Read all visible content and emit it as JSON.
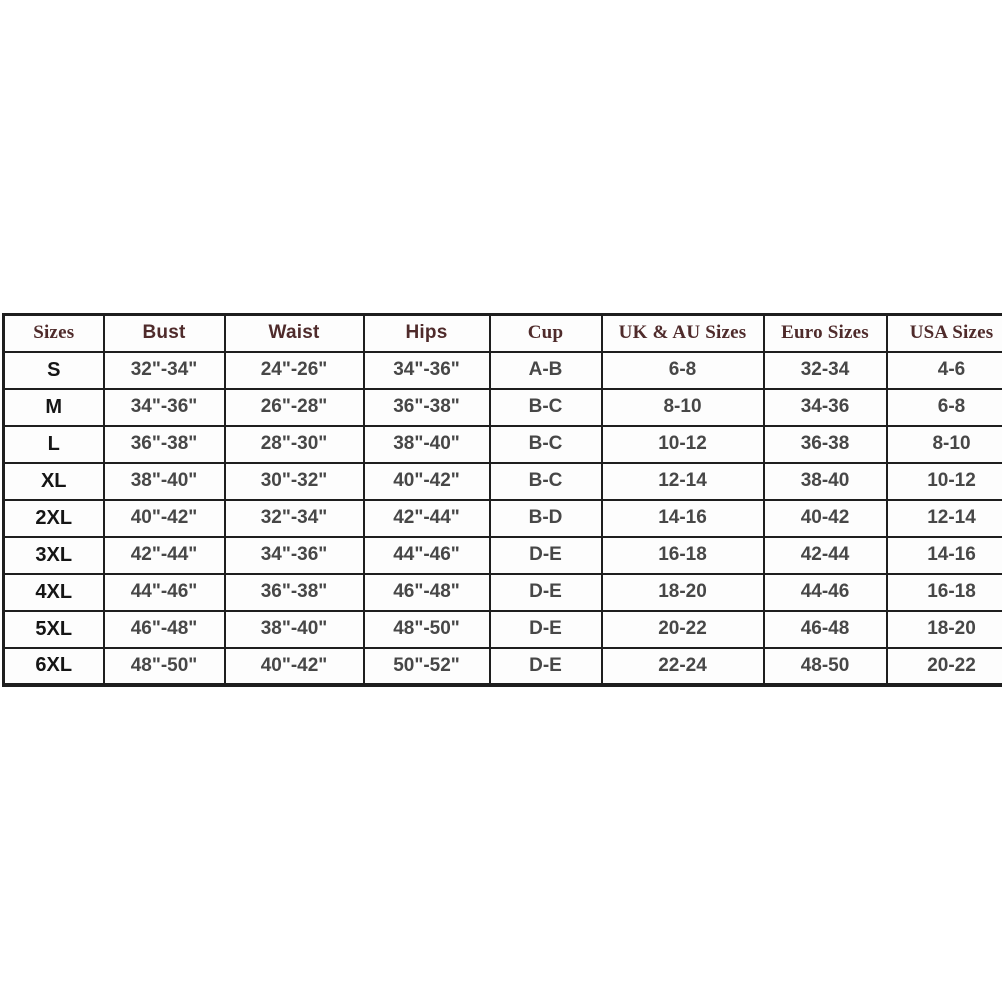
{
  "chart_data": {
    "type": "table",
    "columns": [
      "Sizes",
      "Bust",
      "Waist",
      "Hips",
      "Cup",
      "UK & AU Sizes",
      "Euro Sizes",
      "USA Sizes"
    ],
    "rows": [
      [
        "S",
        "32\"-34\"",
        "24\"-26\"",
        "34\"-36\"",
        "A-B",
        "6-8",
        "32-34",
        "4-6"
      ],
      [
        "M",
        "34\"-36\"",
        "26\"-28\"",
        "36\"-38\"",
        "B-C",
        "8-10",
        "34-36",
        "6-8"
      ],
      [
        "L",
        "36\"-38\"",
        "28\"-30\"",
        "38\"-40\"",
        "B-C",
        "10-12",
        "36-38",
        "8-10"
      ],
      [
        "XL",
        "38\"-40\"",
        "30\"-32\"",
        "40\"-42\"",
        "B-C",
        "12-14",
        "38-40",
        "10-12"
      ],
      [
        "2XL",
        "40\"-42\"",
        "32\"-34\"",
        "42\"-44\"",
        "B-D",
        "14-16",
        "40-42",
        "12-14"
      ],
      [
        "3XL",
        "42\"-44\"",
        "34\"-36\"",
        "44\"-46\"",
        "D-E",
        "16-18",
        "42-44",
        "14-16"
      ],
      [
        "4XL",
        "44\"-46\"",
        "36\"-38\"",
        "46\"-48\"",
        "D-E",
        "18-20",
        "44-46",
        "16-18"
      ],
      [
        "5XL",
        "46\"-48\"",
        "38\"-40\"",
        "48\"-50\"",
        "D-E",
        "20-22",
        "46-48",
        "18-20"
      ],
      [
        "6XL",
        "48\"-50\"",
        "40\"-42\"",
        "50\"-52\"",
        "D-E",
        "22-24",
        "48-50",
        "20-22"
      ]
    ],
    "title": "",
    "layout_hints": {
      "grid": "on",
      "header_row": true,
      "clipped_right_edge": true
    }
  },
  "colors": {
    "page_background": "#ffffff",
    "cell_background": "#fdfdfd",
    "border": "#1e1e1e",
    "header_text": "#4f2b2b",
    "data_text": "#474747",
    "size_label_text": "#151515"
  }
}
